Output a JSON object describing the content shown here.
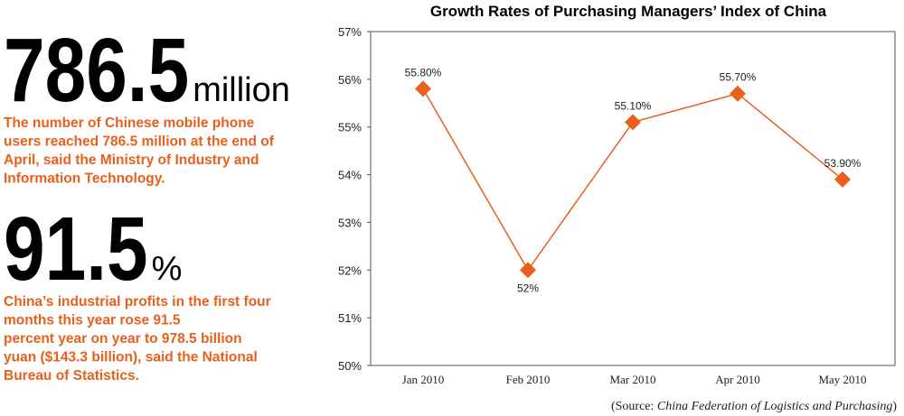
{
  "facts": [
    {
      "number": "786.5",
      "unit": "million",
      "lines": [
        "The number of Chinese mobile phone",
        "users reached 786.5 million at the end of",
        "April, said the Ministry of Industry and",
        "Information Technology."
      ]
    },
    {
      "number": "91.5",
      "unit": "%",
      "lines": [
        "China’s industrial profits in the first four",
        "months this year rose 91.5",
        "percent year on year to 978.5 billion",
        "yuan ($143.3 billion), said the National",
        "Bureau of Statistics."
      ]
    }
  ],
  "chart_data": {
    "type": "line",
    "title": "Growth Rates of Purchasing Managers’ Index of China",
    "categories": [
      "Jan 2010",
      "Feb 2010",
      "Mar 2010",
      "Apr 2010",
      "May 2010"
    ],
    "series": [
      {
        "name": "PMI",
        "color": "#e8601c",
        "values": [
          55.8,
          52,
          55.1,
          55.7,
          53.9
        ],
        "value_labels": [
          "55.80%",
          "52%",
          "55.10%",
          "55.70%",
          "53.90%"
        ]
      }
    ],
    "ylim": [
      50,
      57
    ],
    "yticks": [
      {
        "value": 50,
        "label": "50%"
      },
      {
        "value": 51,
        "label": "51%"
      },
      {
        "value": 52,
        "label": "52%"
      },
      {
        "value": 53,
        "label": "53%"
      },
      {
        "value": 54,
        "label": "54%"
      },
      {
        "value": 55,
        "label": "55%"
      },
      {
        "value": 56,
        "label": "56%"
      },
      {
        "value": 57,
        "label": "57%"
      }
    ],
    "source": {
      "prefix": "(Source: ",
      "name": "China Federation of Logistics and Purchasing",
      "suffix": ")"
    }
  }
}
